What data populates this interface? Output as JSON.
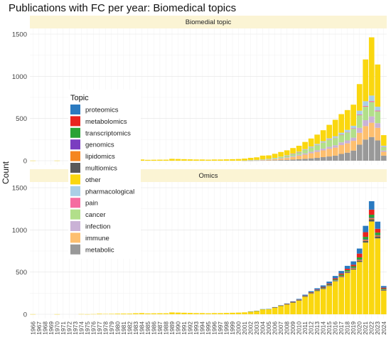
{
  "chart_data": {
    "type": "bar",
    "stacked": true,
    "title": "Publications with FC per year: Biomedical topics",
    "ylabel": "Count",
    "xlabel": "",
    "ylim": [
      0,
      1500
    ],
    "yticks": [
      0,
      500,
      1000,
      1500
    ],
    "grid": true,
    "legend": {
      "title": "Topic",
      "placement": "left-center",
      "entries": [
        {
          "name": "proteomics",
          "color": "#2a7ac0"
        },
        {
          "name": "metabolomics",
          "color": "#e8231e"
        },
        {
          "name": "transcriptomics",
          "color": "#2aa235"
        },
        {
          "name": "genomics",
          "color": "#7a3ec0"
        },
        {
          "name": "lipidomics",
          "color": "#f5861f"
        },
        {
          "name": "multiomics",
          "color": "#595959"
        },
        {
          "name": "other",
          "color": "#fad70f"
        },
        {
          "name": "pharmacological",
          "color": "#a9cfe6"
        },
        {
          "name": "pain",
          "color": "#f56ca0"
        },
        {
          "name": "cancer",
          "color": "#b2df8a"
        },
        {
          "name": "infection",
          "color": "#cab2d6"
        },
        {
          "name": "immune",
          "color": "#fdbf6f"
        },
        {
          "name": "metabolic",
          "color": "#999999"
        }
      ]
    },
    "categories": [
      "1966",
      "1967",
      "1968",
      "1969",
      "1970",
      "1971",
      "1972",
      "1973",
      "1974",
      "1975",
      "1976",
      "1977",
      "1978",
      "1979",
      "1980",
      "1981",
      "1982",
      "1983",
      "1984",
      "1985",
      "1986",
      "1987",
      "1988",
      "1989",
      "1990",
      "1991",
      "1992",
      "1993",
      "1994",
      "1995",
      "1996",
      "1997",
      "1998",
      "1999",
      "2000",
      "2001",
      "2002",
      "2003",
      "2004",
      "2005",
      "2006",
      "2007",
      "2008",
      "2009",
      "2010",
      "2011",
      "2012",
      "2013",
      "2014",
      "2015",
      "2016",
      "2017",
      "2018",
      "2019",
      "2020",
      "2021",
      "2022",
      "2023",
      "2024"
    ],
    "panels": [
      {
        "strip": "Biomedial topic",
        "series": [
          {
            "name": "metabolic",
            "values": [
              0,
              0,
              0,
              0,
              0,
              0,
              0,
              0,
              0,
              0,
              0,
              0,
              0,
              0,
              0,
              0,
              0,
              0,
              0,
              0,
              0,
              0,
              0,
              0,
              0,
              0,
              0,
              0,
              0,
              0,
              0,
              0,
              0,
              0,
              0,
              1,
              1,
              2,
              3,
              4,
              6,
              8,
              10,
              14,
              18,
              22,
              28,
              34,
              42,
              50,
              60,
              80,
              95,
              120,
              190,
              250,
              280,
              240,
              60
            ]
          },
          {
            "name": "immune",
            "values": [
              0,
              0,
              0,
              0,
              0,
              0,
              0,
              0,
              0,
              0,
              0,
              0,
              0,
              0,
              0,
              0,
              0,
              0,
              0,
              0,
              0,
              0,
              0,
              0,
              0,
              0,
              0,
              0,
              0,
              0,
              0,
              0,
              0,
              0,
              0,
              1,
              2,
              3,
              5,
              8,
              12,
              16,
              22,
              30,
              40,
              50,
              60,
              70,
              80,
              90,
              95,
              105,
              110,
              115,
              140,
              160,
              170,
              150,
              45
            ]
          },
          {
            "name": "infection",
            "values": [
              0,
              0,
              0,
              0,
              0,
              0,
              0,
              0,
              0,
              0,
              0,
              0,
              0,
              0,
              0,
              0,
              0,
              0,
              0,
              0,
              0,
              0,
              0,
              0,
              0,
              0,
              0,
              0,
              0,
              0,
              0,
              0,
              0,
              0,
              0,
              0,
              1,
              1,
              2,
              3,
              4,
              6,
              8,
              10,
              12,
              15,
              18,
              20,
              22,
              25,
              28,
              32,
              35,
              38,
              60,
              70,
              75,
              55,
              15
            ]
          },
          {
            "name": "cancer",
            "values": [
              0,
              0,
              0,
              0,
              0,
              0,
              0,
              0,
              0,
              0,
              0,
              0,
              0,
              0,
              0,
              0,
              0,
              0,
              0,
              0,
              0,
              0,
              0,
              0,
              0,
              0,
              0,
              0,
              0,
              0,
              0,
              0,
              0,
              0,
              0,
              1,
              2,
              3,
              4,
              6,
              10,
              15,
              20,
              25,
              30,
              40,
              50,
              60,
              70,
              80,
              85,
              90,
              95,
              105,
              150,
              160,
              170,
              140,
              40
            ]
          },
          {
            "name": "pain",
            "values": [
              0,
              0,
              0,
              0,
              0,
              0,
              0,
              0,
              0,
              0,
              0,
              0,
              0,
              0,
              0,
              0,
              0,
              0,
              0,
              0,
              0,
              0,
              0,
              0,
              0,
              0,
              0,
              0,
              0,
              0,
              0,
              0,
              0,
              0,
              0,
              0,
              0,
              0,
              0,
              0,
              0,
              0,
              1,
              1,
              1,
              2,
              2,
              3,
              3,
              4,
              4,
              5,
              5,
              6,
              8,
              10,
              12,
              10,
              3
            ]
          },
          {
            "name": "pharmacological",
            "values": [
              0,
              0,
              0,
              0,
              0,
              0,
              0,
              0,
              0,
              0,
              0,
              0,
              0,
              0,
              0,
              0,
              0,
              0,
              0,
              0,
              0,
              0,
              0,
              0,
              0,
              0,
              0,
              0,
              0,
              0,
              0,
              0,
              0,
              0,
              0,
              0,
              1,
              1,
              1,
              2,
              2,
              3,
              4,
              5,
              6,
              8,
              10,
              12,
              14,
              16,
              18,
              20,
              25,
              30,
              45,
              55,
              65,
              45,
              15
            ]
          },
          {
            "name": "other",
            "values": [
              1,
              0,
              0,
              0,
              1,
              0,
              0,
              0,
              2,
              1,
              2,
              6,
              4,
              5,
              7,
              8,
              8,
              12,
              14,
              10,
              11,
              12,
              12,
              22,
              20,
              18,
              16,
              14,
              14,
              12,
              14,
              14,
              16,
              18,
              20,
              22,
              27,
              30,
              45,
              40,
              48,
              55,
              58,
              65,
              70,
              85,
              95,
              110,
              130,
              160,
              195,
              220,
              235,
              250,
              315,
              495,
              690,
              500,
              125
            ]
          }
        ]
      },
      {
        "strip": "Omics",
        "series": [
          {
            "name": "other",
            "values": [
              1,
              0,
              0,
              0,
              1,
              0,
              0,
              0,
              2,
              1,
              2,
              6,
              4,
              5,
              7,
              8,
              8,
              12,
              14,
              10,
              11,
              12,
              12,
              22,
              20,
              18,
              16,
              14,
              14,
              12,
              14,
              14,
              16,
              18,
              20,
              23,
              33,
              40,
              59,
              62,
              80,
              101,
              118,
              140,
              165,
              210,
              245,
              275,
              300,
              335,
              390,
              440,
              490,
              530,
              620,
              850,
              1100,
              900,
              280
            ]
          },
          {
            "name": "multiomics",
            "values": [
              0,
              0,
              0,
              0,
              0,
              0,
              0,
              0,
              0,
              0,
              0,
              0,
              0,
              0,
              0,
              0,
              0,
              0,
              0,
              0,
              0,
              0,
              0,
              0,
              0,
              0,
              0,
              0,
              0,
              0,
              0,
              0,
              0,
              0,
              0,
              0,
              0,
              0,
              0,
              0,
              0,
              0,
              0,
              1,
              1,
              1,
              2,
              2,
              3,
              4,
              5,
              6,
              8,
              10,
              15,
              20,
              25,
              22,
              8
            ]
          },
          {
            "name": "lipidomics",
            "values": [
              0,
              0,
              0,
              0,
              0,
              0,
              0,
              0,
              0,
              0,
              0,
              0,
              0,
              0,
              0,
              0,
              0,
              0,
              0,
              0,
              0,
              0,
              0,
              0,
              0,
              0,
              0,
              0,
              0,
              0,
              0,
              0,
              0,
              0,
              0,
              0,
              0,
              0,
              0,
              0,
              0,
              0,
              1,
              1,
              1,
              2,
              2,
              2,
              3,
              3,
              4,
              5,
              5,
              6,
              8,
              10,
              12,
              10,
              3
            ]
          },
          {
            "name": "genomics",
            "values": [
              0,
              0,
              0,
              0,
              0,
              0,
              0,
              0,
              0,
              0,
              0,
              0,
              0,
              0,
              0,
              0,
              0,
              0,
              0,
              0,
              0,
              0,
              0,
              0,
              0,
              0,
              0,
              0,
              0,
              0,
              0,
              0,
              0,
              0,
              0,
              0,
              0,
              0,
              0,
              0,
              0,
              0,
              1,
              1,
              1,
              1,
              2,
              2,
              2,
              3,
              3,
              4,
              4,
              5,
              6,
              8,
              8,
              6,
              2
            ]
          },
          {
            "name": "transcriptomics",
            "values": [
              0,
              0,
              0,
              0,
              0,
              0,
              0,
              0,
              0,
              0,
              0,
              0,
              0,
              0,
              0,
              0,
              0,
              0,
              0,
              0,
              0,
              0,
              0,
              0,
              0,
              0,
              0,
              0,
              0,
              0,
              0,
              0,
              0,
              0,
              0,
              0,
              0,
              0,
              0,
              0,
              1,
              1,
              1,
              2,
              3,
              4,
              5,
              6,
              8,
              10,
              12,
              14,
              16,
              18,
              25,
              30,
              35,
              30,
              10
            ]
          },
          {
            "name": "metabolomics",
            "values": [
              0,
              0,
              0,
              0,
              0,
              0,
              0,
              0,
              0,
              0,
              0,
              0,
              0,
              0,
              0,
              0,
              0,
              0,
              0,
              0,
              0,
              0,
              0,
              0,
              0,
              0,
              0,
              0,
              0,
              0,
              0,
              0,
              0,
              0,
              0,
              0,
              0,
              0,
              0,
              0,
              1,
              1,
              2,
              2,
              3,
              4,
              5,
              6,
              8,
              10,
              12,
              14,
              16,
              18,
              45,
              55,
              60,
              45,
              12
            ]
          },
          {
            "name": "proteomics",
            "values": [
              0,
              0,
              0,
              0,
              0,
              0,
              0,
              0,
              0,
              0,
              0,
              0,
              0,
              0,
              0,
              0,
              0,
              0,
              0,
              0,
              0,
              0,
              0,
              0,
              0,
              0,
              0,
              0,
              0,
              0,
              0,
              0,
              0,
              0,
              0,
              0,
              1,
              1,
              2,
              2,
              3,
              4,
              5,
              6,
              8,
              10,
              12,
              15,
              18,
              22,
              28,
              30,
              35,
              40,
              60,
              75,
              100,
              85,
              20
            ]
          }
        ]
      }
    ]
  }
}
